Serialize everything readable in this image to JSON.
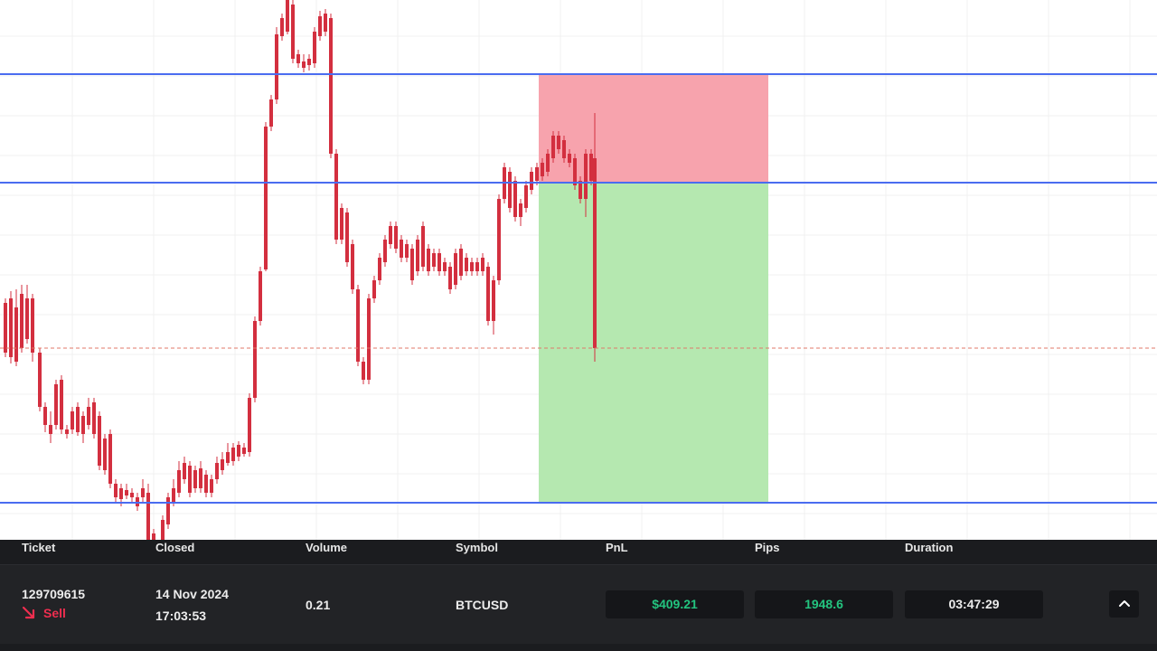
{
  "chart": {
    "colors": {
      "bull": "#26a17b",
      "bear": "#d32f3f",
      "level_line": "#4a6cf0",
      "stop_zone": "#f7a3ad",
      "target_zone": "#b5e8b0",
      "close_line": "#e07a6a",
      "grid": "#f0f0f0"
    }
  },
  "trade_table": {
    "headers": {
      "ticket": "Ticket",
      "closed": "Closed",
      "volume": "Volume",
      "symbol": "Symbol",
      "pnl": "PnL",
      "pips": "Pips",
      "duration": "Duration"
    },
    "row": {
      "ticket": "129709615",
      "side": "Sell",
      "closed_date": "14 Nov 2024",
      "closed_time": "17:03:53",
      "volume": "0.21",
      "symbol": "BTCUSD",
      "pnl": "$409.21",
      "pips": "1948.6",
      "duration": "03:47:29"
    },
    "pnl_color": "#23c47f",
    "side_color": "#ef2e4f",
    "side_icon": "arrow-down-right-icon",
    "expand_icon": "chevron-up-icon"
  }
}
